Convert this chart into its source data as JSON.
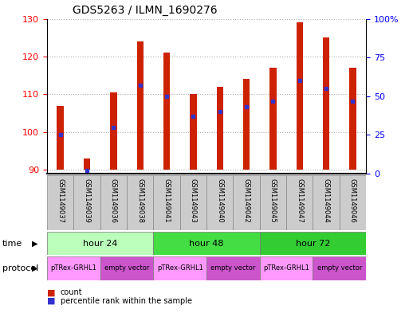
{
  "title": "GDS5263 / ILMN_1690276",
  "samples": [
    "GSM1149037",
    "GSM1149039",
    "GSM1149036",
    "GSM1149038",
    "GSM1149041",
    "GSM1149043",
    "GSM1149040",
    "GSM1149042",
    "GSM1149045",
    "GSM1149047",
    "GSM1149044",
    "GSM1149046"
  ],
  "counts": [
    107.0,
    93.0,
    110.5,
    124.0,
    121.0,
    110.0,
    112.0,
    114.0,
    117.0,
    129.0,
    125.0,
    117.0
  ],
  "percentile_ranks": [
    25,
    2,
    30,
    57,
    50,
    37,
    40,
    43,
    47,
    60,
    55,
    47
  ],
  "bar_bottom": 90,
  "ylim_left": [
    89,
    130
  ],
  "ylim_right": [
    0,
    100
  ],
  "yticks_left": [
    90,
    100,
    110,
    120,
    130
  ],
  "yticks_right": [
    0,
    25,
    50,
    75,
    100
  ],
  "yticklabels_right": [
    "0",
    "25",
    "50",
    "75",
    "100%"
  ],
  "bar_color": "#cc2200",
  "marker_color": "#3333cc",
  "bar_width": 0.25,
  "time_groups": [
    {
      "label": "hour 24",
      "start": 0,
      "end": 4,
      "color": "#bbffbb"
    },
    {
      "label": "hour 48",
      "start": 4,
      "end": 8,
      "color": "#44dd44"
    },
    {
      "label": "hour 72",
      "start": 8,
      "end": 12,
      "color": "#33cc33"
    }
  ],
  "protocol_groups": [
    {
      "label": "pTRex-GRHL1",
      "start": 0,
      "end": 2,
      "color": "#ff99ff"
    },
    {
      "label": "empty vector",
      "start": 2,
      "end": 4,
      "color": "#cc55cc"
    },
    {
      "label": "pTRex-GRHL1",
      "start": 4,
      "end": 6,
      "color": "#ff99ff"
    },
    {
      "label": "empty vector",
      "start": 6,
      "end": 8,
      "color": "#cc55cc"
    },
    {
      "label": "pTRex-GRHL1",
      "start": 8,
      "end": 10,
      "color": "#ff99ff"
    },
    {
      "label": "empty vector",
      "start": 10,
      "end": 12,
      "color": "#cc55cc"
    }
  ],
  "sample_bg_color": "#cccccc",
  "sample_border_color": "#888888"
}
